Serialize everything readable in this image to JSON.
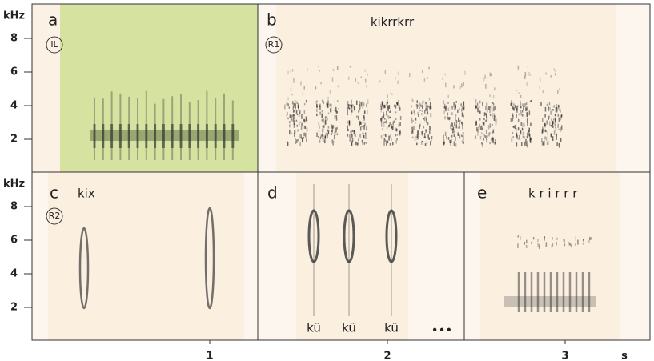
{
  "axes": {
    "y_unit": "kHz",
    "y_ticks": [
      "8",
      "6",
      "4",
      "2"
    ],
    "x_ticks": [
      "1",
      "2",
      "3"
    ],
    "x_unit": "s"
  },
  "panels": [
    {
      "label": "a",
      "tag": "IL"
    },
    {
      "label": "b",
      "tag": "R1",
      "caption": "kikrrkrr"
    },
    {
      "label": "c",
      "tag": "R2",
      "caption": "kix"
    },
    {
      "label": "d",
      "syllables": [
        "kü",
        "kü",
        "kü"
      ],
      "ellipsis": "•••"
    },
    {
      "label": "e",
      "caption": "k r i r r r"
    }
  ]
}
